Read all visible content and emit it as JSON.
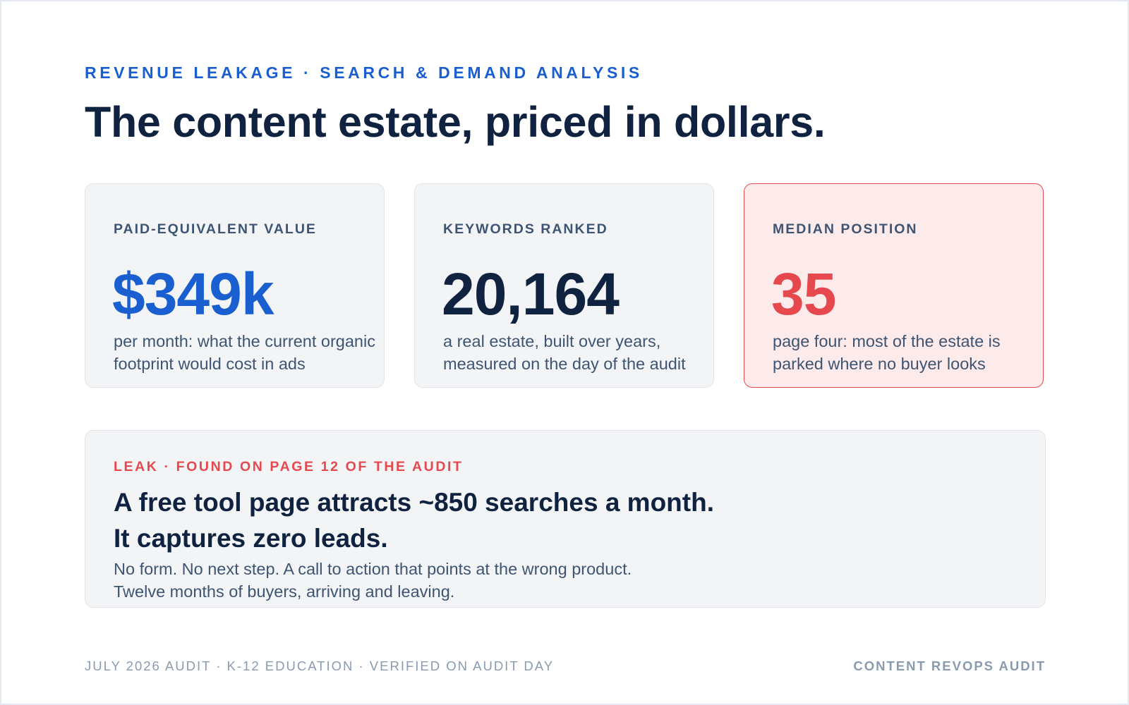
{
  "header": {
    "eyebrow": "REVENUE LEAKAGE · SEARCH & DEMAND ANALYSIS",
    "title": "The content estate, priced in dollars."
  },
  "cards": [
    {
      "label": "PAID-EQUIVALENT VALUE",
      "value": "$349k",
      "description": [
        "per month: what the current organic",
        "footprint would cost in ads"
      ]
    },
    {
      "label": "KEYWORDS RANKED",
      "value": "20,164",
      "description": [
        "a real estate, built over years,",
        "measured on the day of the audit"
      ]
    },
    {
      "label": "MEDIAN POSITION",
      "value": "35",
      "description": [
        "page four: most of the estate is",
        "parked where no buyer looks"
      ]
    }
  ],
  "leak": {
    "label": "LEAK · FOUND ON PAGE 12 OF THE AUDIT",
    "headline": [
      "A free tool page attracts ~850 searches a month.",
      "It captures zero leads."
    ],
    "body": [
      "No form. No next step. A call to action that points at the wrong product.",
      "Twelve months of buyers, arriving and leaving."
    ]
  },
  "footer": {
    "left": "JULY 2026 AUDIT · K-12 EDUCATION · VERIFIED ON AUDIT DAY",
    "right": "CONTENT REVOPS AUDIT"
  }
}
